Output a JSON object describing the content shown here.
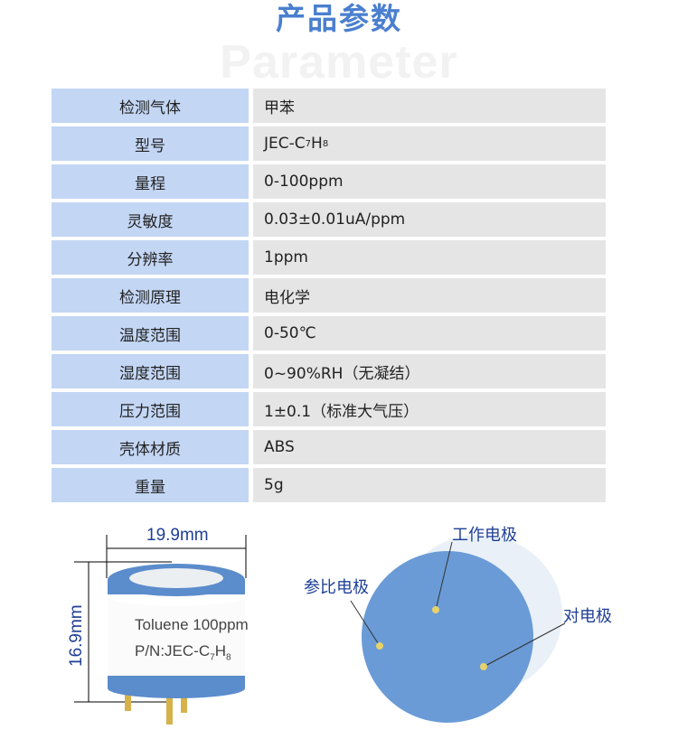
{
  "header": {
    "title": "产品参数",
    "watermark": "Parameter",
    "title_color": "#4a7fcf"
  },
  "params": [
    {
      "label": "检测气体",
      "value": "甲苯"
    },
    {
      "label": "型号",
      "value": "JEC-C",
      "sub1": "7",
      "mid": "H",
      "sub2": "8"
    },
    {
      "label": "量程",
      "value": "0-100ppm"
    },
    {
      "label": "灵敏度",
      "value": "0.03±0.01uA/ppm"
    },
    {
      "label": "分辨率",
      "value": "1ppm"
    },
    {
      "label": "检测原理",
      "value": "电化学"
    },
    {
      "label": "温度范围",
      "value": "0-50℃"
    },
    {
      "label": "湿度范围",
      "value": "0~90%RH（无凝结）"
    },
    {
      "label": "压力范围",
      "value": "1±0.1（标准大气压）"
    },
    {
      "label": "壳体材质",
      "value": "ABS"
    },
    {
      "label": "重量",
      "value": "5g"
    }
  ],
  "sensor": {
    "width": "19.9mm",
    "height": "16.9mm",
    "label1": "Toluene 100ppm",
    "label2": "P/N:JEC-C",
    "sub1": "7",
    "mid": "H",
    "sub2": "8"
  },
  "electrodes": {
    "working": "工作电极",
    "reference": "参比电极",
    "counter": "对电极"
  }
}
